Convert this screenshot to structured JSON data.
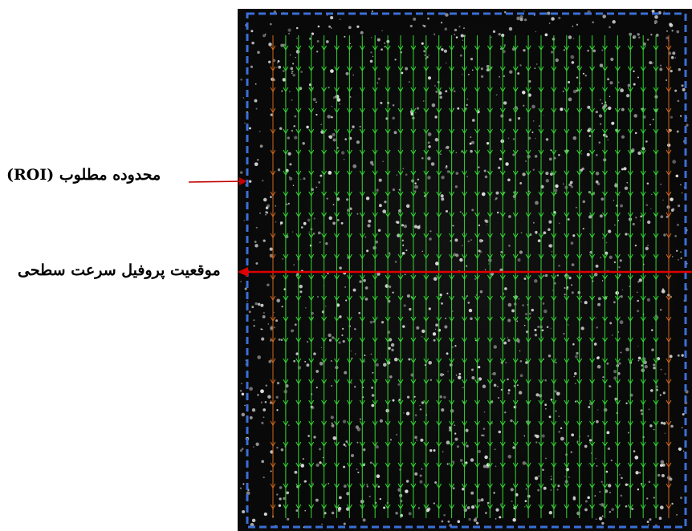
{
  "annotations": {
    "roi_label": "محدوده مطلوب (ROI)",
    "profile_label": "موقعیت پروفیل سرعت سطحی"
  },
  "colors": {
    "image_background": "#0b0b0b",
    "roi_border": "#3a6fd8",
    "arrow_line": "#c00000",
    "vector_inner": "#33dd33",
    "vector_edge": "#d2691e",
    "particle": "#e8e8e8"
  },
  "vector_field": {
    "columns": 32,
    "direction": "down",
    "edge_columns_color": "vector_edge"
  }
}
